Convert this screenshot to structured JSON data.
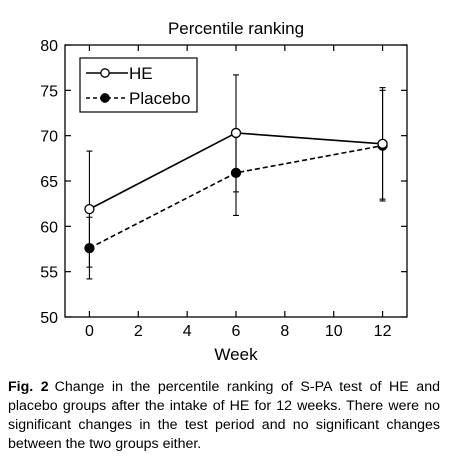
{
  "chart_data": {
    "type": "line",
    "title": "Percentile ranking",
    "xlabel": "Week",
    "ylabel": "",
    "xlim": [
      -1,
      13
    ],
    "ylim": [
      50,
      80
    ],
    "x_ticks": [
      0,
      2,
      4,
      6,
      8,
      10,
      12
    ],
    "y_ticks": [
      50,
      55,
      60,
      65,
      70,
      75,
      80
    ],
    "legend_position": "top-left",
    "grid": false,
    "series": [
      {
        "name": "HE",
        "style": "solid",
        "marker": "open-circle",
        "x": [
          0,
          6,
          12
        ],
        "values": [
          61.9,
          70.3,
          69.1
        ],
        "error_low": [
          55.5,
          63.8,
          63.0
        ],
        "error_high": [
          68.3,
          76.7,
          75.3
        ]
      },
      {
        "name": "Placebo",
        "style": "dashed",
        "marker": "filled-circle",
        "x": [
          0,
          6,
          12
        ],
        "values": [
          57.6,
          65.9,
          68.9
        ],
        "error_low": [
          54.2,
          61.2,
          62.8
        ],
        "error_high": [
          61.0,
          70.5,
          75.0
        ]
      }
    ]
  },
  "caption": {
    "label": "Fig. 2",
    "text": "Change in the percentile ranking of S-PA test of HE and placebo groups after the intake of HE for 12 weeks. There were no significant changes in the test period and no significant changes between the two groups either."
  }
}
